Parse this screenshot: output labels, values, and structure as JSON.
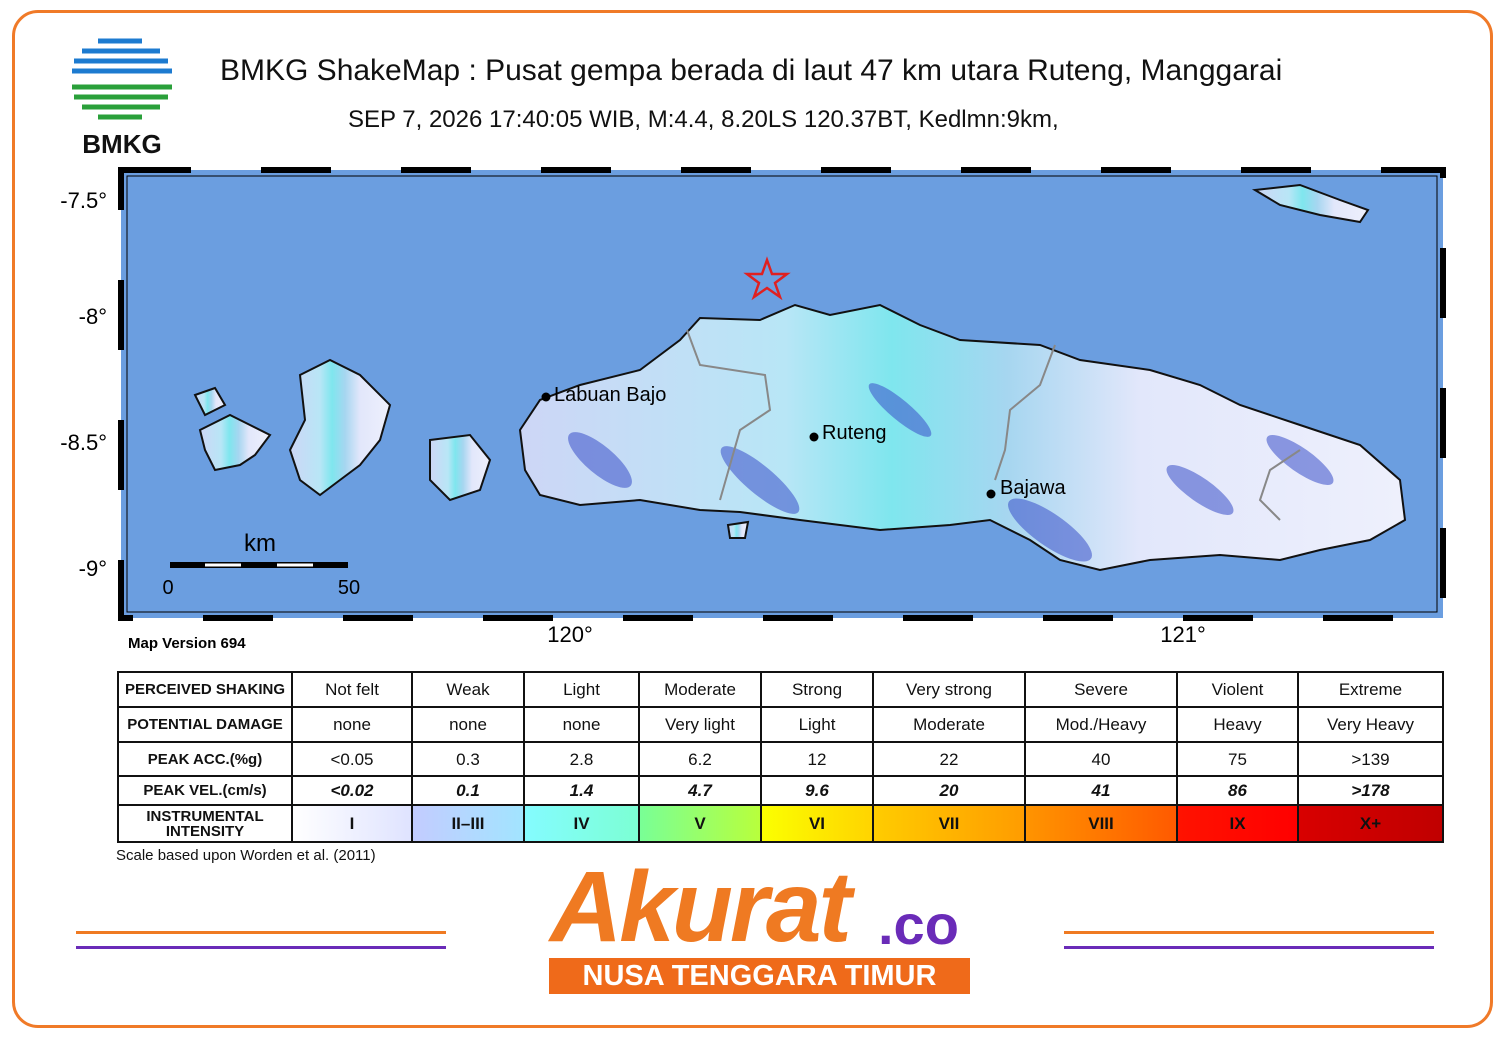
{
  "header": {
    "logo_text": "BMKG",
    "title": "BMKG ShakeMap : Pusat gempa berada di laut 47 km utara Ruteng, Manggarai",
    "subtitle": "SEP 7, 2026 17:40:05 WIB, M:4.4, 8.20LS 120.37BT, Kedlmn:9km,"
  },
  "map": {
    "lat_labels": [
      "-7.5°",
      "-8°",
      "-8.5°",
      "-9°"
    ],
    "lon_labels": [
      "120°",
      "121°"
    ],
    "places": [
      "Labuan Bajo",
      "Ruteng",
      "Bajawa"
    ],
    "scale": {
      "unit": "km",
      "start": "0",
      "end": "50"
    },
    "version": "Map Version 694"
  },
  "table": {
    "rows": [
      [
        "PERCEIVED SHAKING",
        "Not felt",
        "Weak",
        "Light",
        "Moderate",
        "Strong",
        "Very strong",
        "Severe",
        "Violent",
        "Extreme"
      ],
      [
        "POTENTIAL DAMAGE",
        "none",
        "none",
        "none",
        "Very light",
        "Light",
        "Moderate",
        "Mod./Heavy",
        "Heavy",
        "Very Heavy"
      ],
      [
        "PEAK ACC.(%g)",
        "<0.05",
        "0.3",
        "2.8",
        "6.2",
        "12",
        "22",
        "40",
        "75",
        ">139"
      ],
      [
        "PEAK VEL.(cm/s)",
        "<0.02",
        "0.1",
        "1.4",
        "4.7",
        "9.6",
        "20",
        "41",
        "86",
        ">178"
      ],
      [
        "INSTRUMENTAL INTENSITY",
        "I",
        "II–III",
        "IV",
        "V",
        "VI",
        "VII",
        "VIII",
        "IX",
        "X+"
      ]
    ]
  },
  "footnote": "Scale based upon Worden et al. (2011)",
  "brand": {
    "name": "Akurat",
    "suffix": ".co",
    "region": "NUSA TENGGARA TIMUR"
  }
}
